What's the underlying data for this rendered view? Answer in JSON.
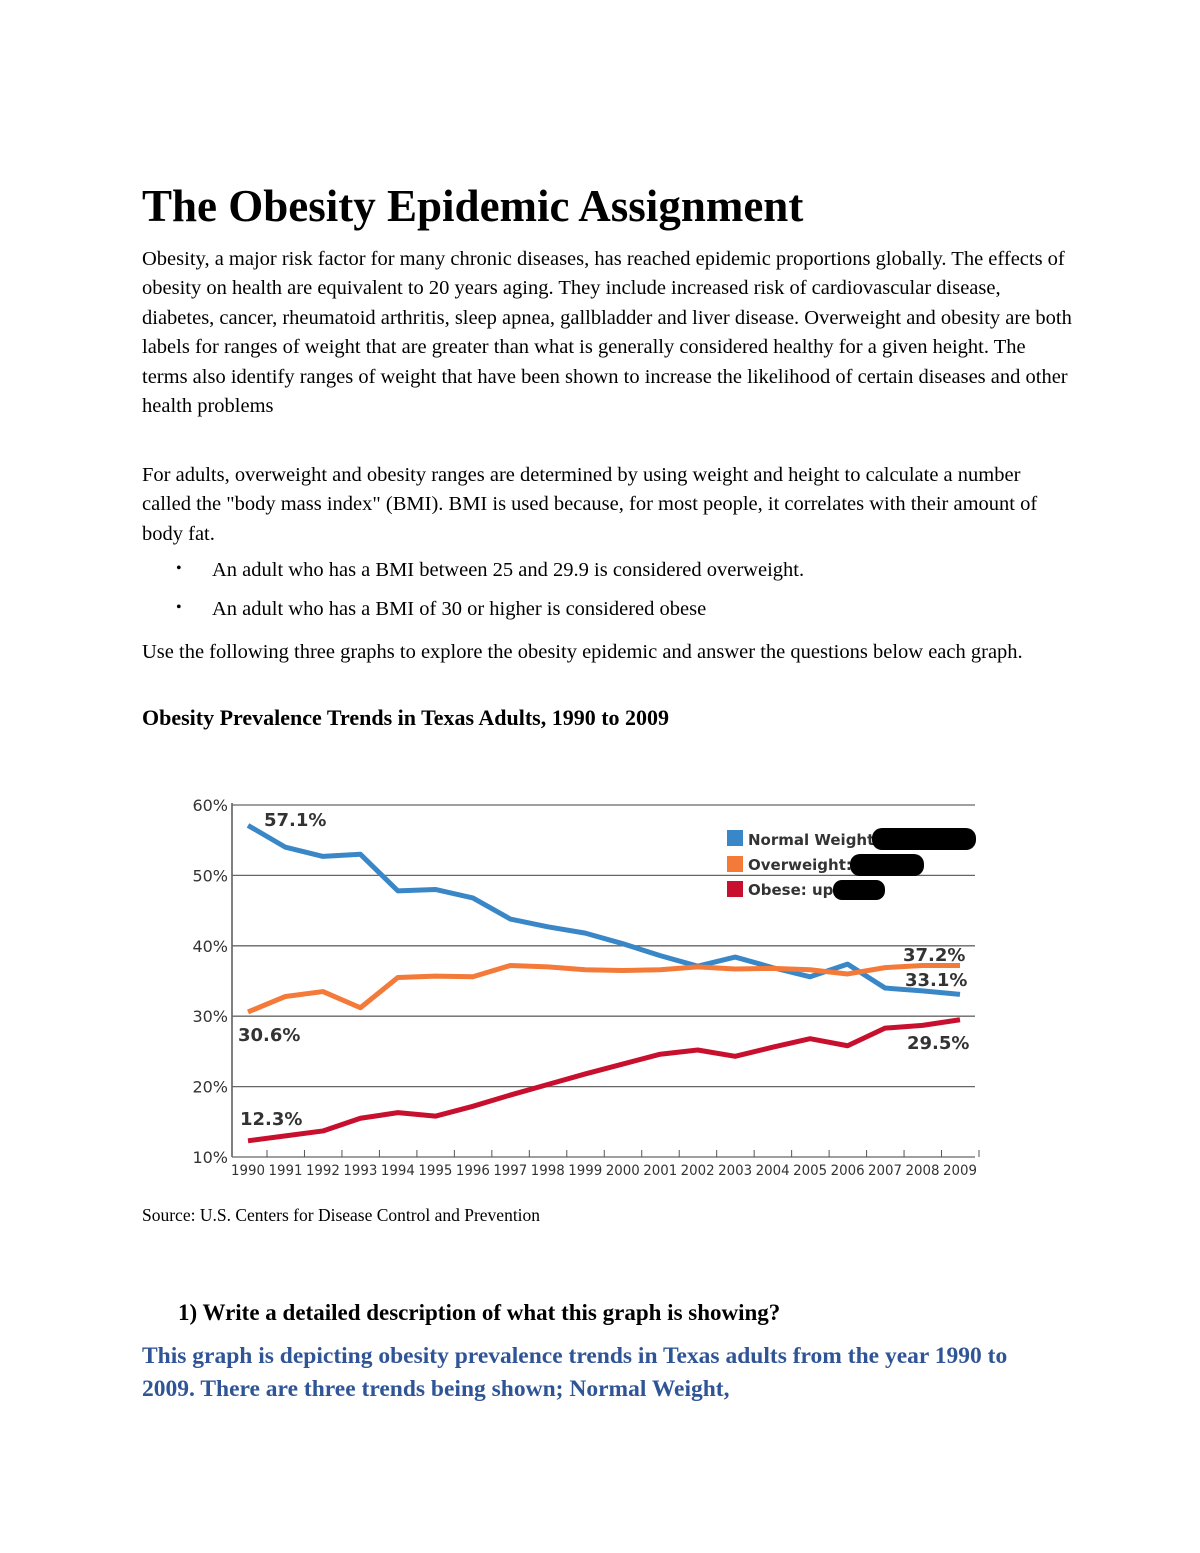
{
  "title": "The Obesity Epidemic Assignment",
  "paragraphs": [
    "Obesity, a major risk factor for many chronic diseases, has reached epidemic proportions globally. The effects of obesity on health are equivalent to 20 years aging. They include increased risk of cardiovascular disease, diabetes, cancer, rheumatoid arthritis, sleep apnea, gallbladder and liver disease. Overweight and obesity are both labels for ranges of weight that are greater than what is generally considered healthy for a given height. The terms also identify ranges of weight that have been shown to increase the likelihood of certain diseases and other health problems",
    "For adults, overweight and obesity ranges are determined by using weight and height to calculate a number called the \"body mass index\" (BMI). BMI is used because, for most people, it correlates with their amount of body fat."
  ],
  "bullets": [
    "An adult who has a BMI between 25 and 29.9 is considered overweight.",
    "An adult who has a BMI of 30 or higher is considered obese"
  ],
  "instructions": "Use the following three graphs to explore the obesity epidemic and answer the questions below each graph.",
  "chart_title": "Obesity Prevalence Trends in Texas Adults, 1990 to 2009",
  "source": "Source: U.S. Centers for Disease Control and Prevention",
  "question": "1)  Write a detailed description of what this graph is showing?",
  "answer": "This graph is depicting obesity prevalence trends in Texas adults from the year 1990 to 2009. There are three trends being shown; Normal Weight,",
  "chart_data": {
    "type": "line",
    "x": [
      1990,
      1991,
      1992,
      1993,
      1994,
      1995,
      1996,
      1997,
      1998,
      1999,
      2000,
      2001,
      2002,
      2003,
      2004,
      2005,
      2006,
      2007,
      2008,
      2009
    ],
    "ylim": [
      10,
      60
    ],
    "yticks": [
      "10%",
      "20%",
      "30%",
      "40%",
      "50%",
      "60%"
    ],
    "grid": true,
    "legend_placement": "top-right",
    "series": [
      {
        "name": "Normal Weight:",
        "color": "#3A87C8",
        "values": [
          57.1,
          54.0,
          52.7,
          53.0,
          47.8,
          48.0,
          46.8,
          43.8,
          42.7,
          41.8,
          40.3,
          38.6,
          37.1,
          38.4,
          36.9,
          35.6,
          37.4,
          34.0,
          33.6,
          33.1
        ]
      },
      {
        "name": "Overweight:",
        "color": "#F47A3A",
        "values": [
          30.6,
          32.8,
          33.5,
          31.2,
          35.5,
          35.7,
          35.6,
          37.2,
          37.0,
          36.6,
          36.5,
          36.6,
          37.0,
          36.7,
          36.8,
          36.6,
          36.0,
          36.9,
          37.2,
          37.2
        ]
      },
      {
        "name": "Obese: up",
        "color": "#C8102E",
        "values": [
          12.3,
          13.0,
          13.7,
          15.5,
          16.3,
          15.8,
          17.2,
          18.8,
          20.3,
          21.8,
          23.2,
          24.6,
          25.2,
          24.3,
          25.6,
          26.8,
          25.8,
          28.3,
          28.7,
          29.5
        ]
      }
    ],
    "annotations": [
      "57.1%",
      "30.6%",
      "12.3%",
      "37.2%",
      "33.1%",
      "29.5%"
    ]
  }
}
